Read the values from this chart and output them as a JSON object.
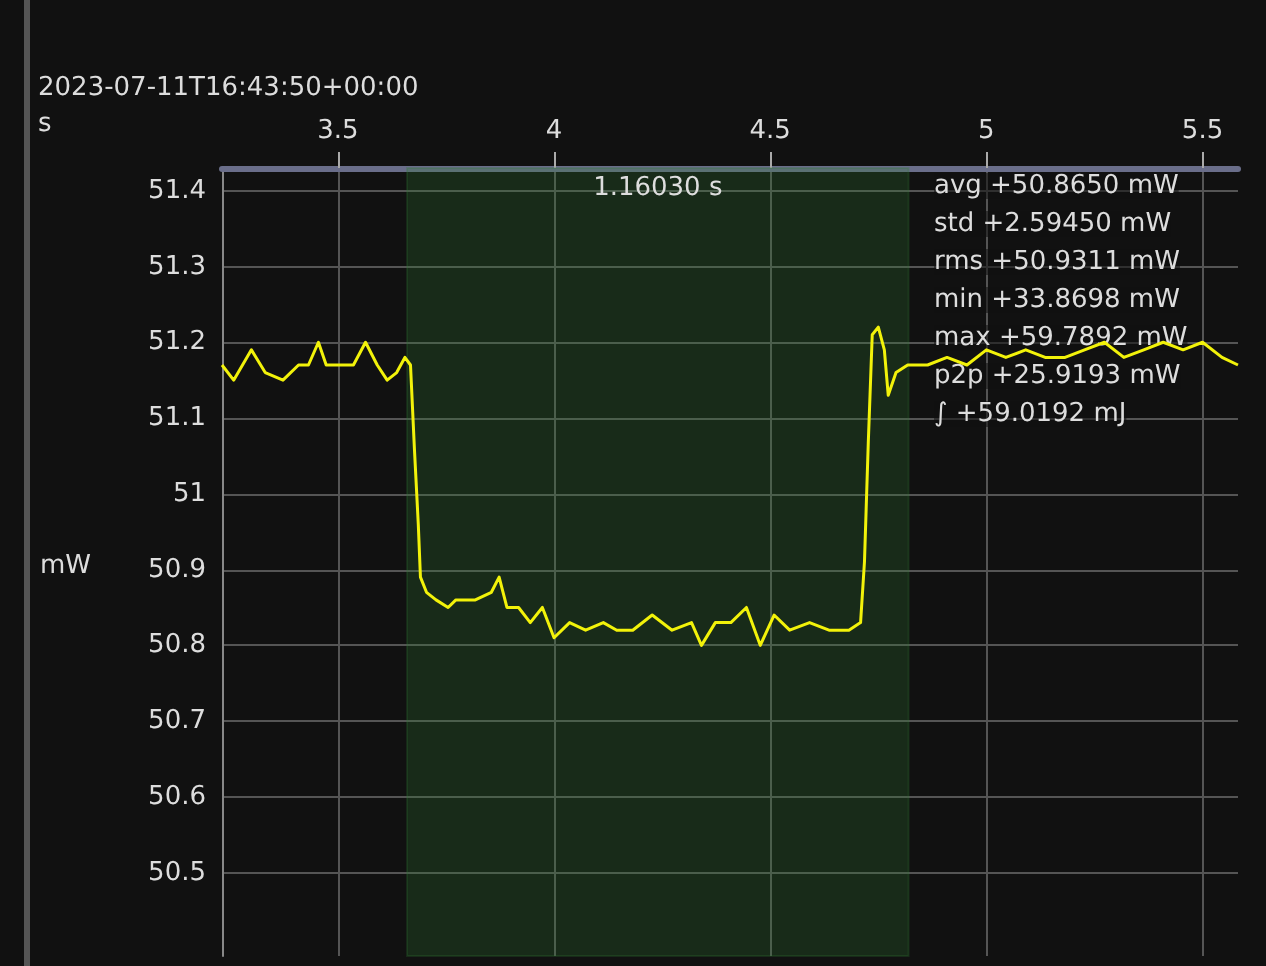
{
  "chart_data": {
    "type": "line",
    "subtitle": "2023-07-11T16:43:50+00:00",
    "xlabel": "s",
    "ylabel": "mW",
    "x": [
      3.232,
      3.259,
      3.3,
      3.332,
      3.373,
      3.409,
      3.432,
      3.455,
      3.473,
      3.509,
      3.536,
      3.564,
      3.591,
      3.614,
      3.636,
      3.655,
      3.668,
      3.677,
      3.686,
      3.691,
      3.705,
      3.727,
      3.755,
      3.773,
      3.818,
      3.855,
      3.873,
      3.891,
      3.918,
      3.945,
      3.973,
      4.0,
      4.036,
      4.073,
      4.114,
      4.145,
      4.182,
      4.227,
      4.273,
      4.318,
      4.341,
      4.373,
      4.409,
      4.445,
      4.477,
      4.509,
      4.545,
      4.591,
      4.636,
      4.682,
      4.709,
      4.718,
      4.727,
      4.736,
      4.75,
      4.764,
      4.773,
      4.791,
      4.818,
      4.864,
      4.909,
      4.955,
      5.0,
      5.045,
      5.091,
      5.136,
      5.182,
      5.227,
      5.273,
      5.318,
      5.364,
      5.409,
      5.455,
      5.5,
      5.545,
      5.582
    ],
    "series": [
      {
        "color": "#f2f20a",
        "values": [
          51.17,
          51.15,
          51.19,
          51.16,
          51.15,
          51.17,
          51.17,
          51.2,
          51.17,
          51.17,
          51.17,
          51.2,
          51.17,
          51.15,
          51.16,
          51.18,
          51.17,
          51.06,
          50.96,
          50.89,
          50.87,
          50.86,
          50.85,
          50.86,
          50.86,
          50.87,
          50.89,
          50.85,
          50.85,
          50.83,
          50.85,
          50.81,
          50.83,
          50.82,
          50.83,
          50.82,
          50.82,
          50.84,
          50.82,
          50.83,
          50.8,
          50.83,
          50.83,
          50.85,
          50.8,
          50.84,
          50.82,
          50.83,
          50.82,
          50.82,
          50.83,
          50.91,
          51.07,
          51.21,
          51.22,
          51.19,
          51.13,
          51.16,
          51.17,
          51.17,
          51.18,
          51.17,
          51.19,
          51.18,
          51.19,
          51.18,
          51.18,
          51.19,
          51.2,
          51.18,
          51.19,
          51.2,
          51.19,
          51.2,
          51.18,
          51.17
        ]
      }
    ],
    "xlim": [
      3.232,
      5.582
    ],
    "xticks": [
      3.5,
      4,
      4.5,
      5,
      5.5
    ],
    "ylim": [
      50.39,
      51.43
    ],
    "yticks": [
      50.5,
      50.6,
      50.7,
      50.8,
      50.9,
      51,
      51.1,
      51.2,
      51.3,
      51.4
    ],
    "bands": [
      {
        "axis": "x",
        "from": 3.66,
        "to": 4.82,
        "label": "1.16030 s",
        "color": "#2e7d32"
      }
    ],
    "annotations": [
      "avg +50.8650 mW",
      "std +2.59450 mW",
      "rms +50.9311 mW",
      "min +33.8698 mW",
      "max +59.7892 mW",
      "p2p +25.9193 mW",
      "∫ +59.0192 mJ"
    ],
    "grid": true,
    "marker": "none",
    "line_style": "solid"
  }
}
